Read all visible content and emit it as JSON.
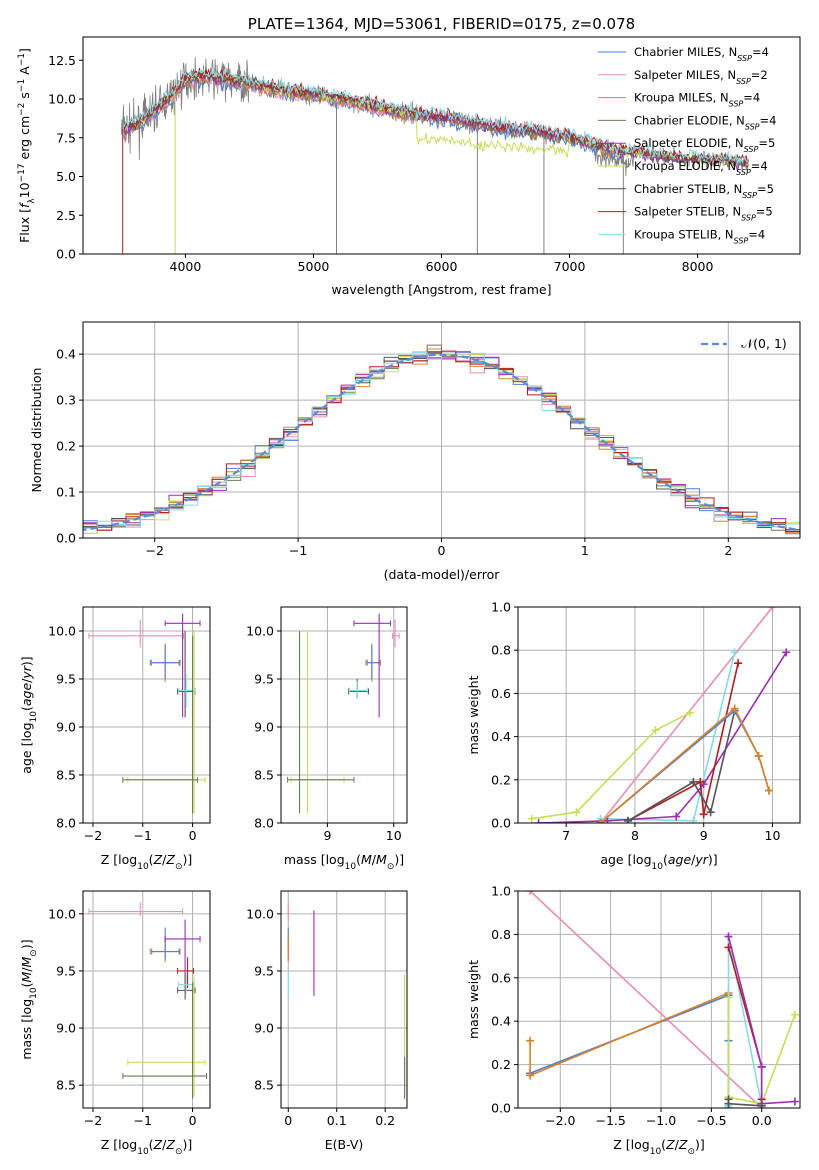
{
  "colors": {
    "Chabrier MILES": "#4f7fd6",
    "Salpeter MILES": "#e98db8",
    "Kroupa MILES": "#d9822b",
    "Chabrier ELODIE": "#6b7b5a",
    "Salpeter ELODIE": "#9a2fb0",
    "Kroupa ELODIE": "#c4e05a",
    "Chabrier STELIB": "#555555",
    "Salpeter STELIB": "#b71c1c",
    "Kroupa STELIB": "#86dbe6",
    "data": "#808080",
    "normal": "#5b8bd8"
  },
  "chart_data": [
    {
      "id": "spectrum",
      "type": "line",
      "title": "PLATE=1364, MJD=53061, FIBERID=0175, z=0.078",
      "xlabel": "wavelength [Angstrom, rest frame]",
      "ylabel": "Flux [f_λ10⁻¹⁷ erg cm⁻² s⁻¹ A⁻¹]",
      "xlim": [
        3200,
        8800
      ],
      "ylim": [
        0,
        14
      ],
      "xticks": [
        4000,
        5000,
        6000,
        7000,
        8000
      ],
      "yticks": [
        0.0,
        2.5,
        5.0,
        7.5,
        10.0,
        12.5
      ],
      "legend": "top-right",
      "legend_entries": [
        {
          "key": "Chabrier MILES",
          "label": "Chabrier MILES, N_SSP=4"
        },
        {
          "key": "Salpeter MILES",
          "label": "Salpeter MILES, N_SSP=2"
        },
        {
          "key": "Kroupa MILES",
          "label": "Kroupa MILES, N_SSP=4"
        },
        {
          "key": "Chabrier ELODIE",
          "label": "Chabrier ELODIE, N_SSP=4"
        },
        {
          "key": "Salpeter ELODIE",
          "label": "Salpeter ELODIE, N_SSP=5"
        },
        {
          "key": "Kroupa ELODIE",
          "label": "Kroupa ELODIE, N_SSP=4"
        },
        {
          "key": "Chabrier STELIB",
          "label": "Chabrier STELIB, N_SSP=5"
        },
        {
          "key": "Salpeter STELIB",
          "label": "Salpeter STELIB, N_SSP=5"
        },
        {
          "key": "Kroupa STELIB",
          "label": "Kroupa STELIB, N_SSP=4"
        }
      ],
      "continuum": {
        "x": [
          3500,
          3600,
          3700,
          3800,
          3900,
          4000,
          4100,
          4200,
          4300,
          4400,
          4500,
          4600,
          4700,
          4800,
          4900,
          5000,
          5200,
          5400,
          5600,
          5800,
          6000,
          6200,
          6400,
          6600,
          6800,
          7000,
          7200,
          7400,
          7600,
          7800,
          8000,
          8200,
          8400
        ],
        "y": [
          8.0,
          8.3,
          8.8,
          9.6,
          10.2,
          11.3,
          11.4,
          11.4,
          11.3,
          11.1,
          11.0,
          10.8,
          10.6,
          10.5,
          10.4,
          10.3,
          10.0,
          9.7,
          9.3,
          9.0,
          8.8,
          8.5,
          8.2,
          8.0,
          7.8,
          7.5,
          7.0,
          6.6,
          6.4,
          6.2,
          6.1,
          6.0,
          5.8
        ]
      }
    },
    {
      "id": "residuals",
      "type": "histogram",
      "xlabel": "(data-model)/error",
      "ylabel": "Normed distribution",
      "xlim": [
        -2.5,
        2.5
      ],
      "ylim": [
        0,
        0.47
      ],
      "xticks": [
        -2,
        -1,
        0,
        1,
        2
      ],
      "yticks": [
        0.0,
        0.1,
        0.2,
        0.3,
        0.4
      ],
      "legend": "top-right",
      "legend_label": "𝒩(0, 1)",
      "bin_width": 0.1
    },
    {
      "id": "age-vs-Z",
      "type": "scatter",
      "xlabel": "Z [log10(Z/Z⊙)]",
      "ylabel": "age  [log10(age/yr)]",
      "xlim": [
        -2.2,
        0.35
      ],
      "ylim": [
        8.0,
        10.25
      ],
      "xticks": [
        -2,
        -1,
        0
      ],
      "yticks": [
        8.0,
        8.5,
        9.0,
        9.5,
        10.0
      ],
      "points": [
        {
          "key": "Salpeter MILES",
          "x": -1.05,
          "y": 9.95,
          "x0": -2.08,
          "x1": -0.18,
          "y0": 9.83,
          "y1": 10.12
        },
        {
          "key": "Kroupa MILES",
          "x": -0.55,
          "y": 9.67,
          "x0": -0.85,
          "x1": -0.25,
          "y0": 9.47,
          "y1": 9.87
        },
        {
          "key": "Chabrier MILES",
          "x": -0.55,
          "y": 9.67,
          "x0": -0.83,
          "x1": -0.27,
          "y0": 9.5,
          "y1": 9.85
        },
        {
          "key": "Salpeter ELODIE",
          "x": -0.2,
          "y": 10.08,
          "x0": -0.55,
          "x1": 0.15,
          "y0": 9.1,
          "y1": 10.18
        },
        {
          "key": "Chabrier STELIB",
          "x": -0.15,
          "y": 9.37,
          "x0": -0.3,
          "x1": 0.05,
          "y0": 9.1,
          "y1": 10.0
        },
        {
          "key": "Kroupa STELIB",
          "x": -0.13,
          "y": 9.38,
          "x0": -0.28,
          "x1": 0.05,
          "y0": 9.2,
          "y1": 9.55
        },
        {
          "key": "Kroupa ELODIE",
          "x": 0.03,
          "y": 8.45,
          "x0": -1.3,
          "x1": 0.25,
          "y0": 8.1,
          "y1": 10.0
        },
        {
          "key": "Chabrier ELODIE",
          "x": 0.0,
          "y": 8.45,
          "x0": -1.4,
          "x1": 0.1,
          "y0": 8.1,
          "y1": 9.95
        }
      ]
    },
    {
      "id": "age-vs-mass",
      "type": "scatter",
      "xlabel": "mass [log10(M/M⊙)]",
      "ylabel": "",
      "xlim": [
        8.3,
        10.2
      ],
      "ylim": [
        8.0,
        10.25
      ],
      "xticks": [
        9,
        10
      ],
      "yticks": [
        8.0,
        8.5,
        9.0,
        9.5,
        10.0
      ],
      "points": [
        {
          "key": "Salpeter MILES",
          "x": 10.02,
          "y": 9.95,
          "x0": 9.98,
          "x1": 10.08,
          "y0": 9.83,
          "y1": 10.12
        },
        {
          "key": "Kroupa MILES",
          "x": 9.67,
          "y": 9.67,
          "x0": 9.58,
          "x1": 9.8,
          "y0": 9.47,
          "y1": 9.87
        },
        {
          "key": "Chabrier MILES",
          "x": 9.67,
          "y": 9.67,
          "x0": 9.6,
          "x1": 9.78,
          "y0": 9.5,
          "y1": 9.85
        },
        {
          "key": "Salpeter ELODIE",
          "x": 9.78,
          "y": 10.08,
          "x0": 9.4,
          "x1": 9.95,
          "y0": 9.1,
          "y1": 10.18
        },
        {
          "key": "Chabrier STELIB",
          "x": 9.45,
          "y": 9.37,
          "x0": 9.32,
          "x1": 9.62,
          "y0": 9.3,
          "y1": 9.5
        },
        {
          "key": "Kroupa STELIB",
          "x": 9.45,
          "y": 9.38,
          "x0": 9.33,
          "x1": 9.6,
          "y0": 9.3,
          "y1": 9.48
        },
        {
          "key": "Kroupa ELODIE",
          "x": 8.7,
          "y": 8.45,
          "x0": 8.45,
          "x1": 9.25,
          "y0": 8.1,
          "y1": 10.0
        },
        {
          "key": "Chabrier ELODIE",
          "x": 8.58,
          "y": 8.45,
          "x0": 8.4,
          "x1": 9.4,
          "y0": 8.1,
          "y1": 10.0
        }
      ]
    },
    {
      "id": "massweight-vs-age",
      "type": "line",
      "xlabel": "age  [log10(age/yr)]",
      "ylabel": "mass weight",
      "xlim": [
        6.3,
        10.4
      ],
      "ylim": [
        0,
        1.0
      ],
      "xticks": [
        7,
        8,
        9,
        10
      ],
      "yticks": [
        0.0,
        0.2,
        0.4,
        0.6,
        0.8,
        1.0
      ],
      "series": [
        {
          "key": "Salpeter MILES",
          "x": [
            7.5,
            10.0
          ],
          "y": [
            0.0,
            1.0
          ]
        },
        {
          "key": "Kroupa ELODIE",
          "x": [
            6.5,
            7.15,
            8.3,
            8.8
          ],
          "y": [
            0.02,
            0.05,
            0.43,
            0.51
          ]
        },
        {
          "key": "Kroupa STELIB",
          "x": [
            7.5,
            8.85,
            9.45
          ],
          "y": [
            0.02,
            0.01,
            0.79
          ]
        },
        {
          "key": "Salpeter ELODIE",
          "x": [
            6.6,
            7.6,
            8.6,
            9.0,
            10.2
          ],
          "y": [
            0.0,
            0.01,
            0.03,
            0.18,
            0.79
          ]
        },
        {
          "key": "Salpeter STELIB",
          "x": [
            7.9,
            8.95,
            9.0,
            9.5
          ],
          "y": [
            0.01,
            0.19,
            0.04,
            0.74
          ]
        },
        {
          "key": "Chabrier STELIB",
          "x": [
            7.9,
            8.85,
            9.1,
            9.45
          ],
          "y": [
            0.01,
            0.19,
            0.05,
            0.52
          ]
        },
        {
          "key": "Chabrier MILES",
          "x": [
            7.5,
            9.45,
            9.8,
            9.95
          ],
          "y": [
            0.0,
            0.52,
            0.31,
            0.15
          ]
        },
        {
          "key": "Kroupa MILES",
          "x": [
            7.5,
            9.45,
            9.8,
            9.95
          ],
          "y": [
            0.0,
            0.53,
            0.31,
            0.15
          ]
        }
      ]
    },
    {
      "id": "mass-vs-Z",
      "type": "scatter",
      "xlabel": "Z [log10(Z/Z⊙)]",
      "ylabel": "mass [log10(M/M⊙)]",
      "xlim": [
        -2.2,
        0.35
      ],
      "ylim": [
        8.3,
        10.2
      ],
      "xticks": [
        -2,
        -1,
        0
      ],
      "yticks": [
        8.5,
        9.0,
        9.5,
        10.0
      ],
      "points": [
        {
          "key": "Salpeter MILES",
          "x": -1.05,
          "y": 10.02,
          "x0": -2.08,
          "x1": -0.2,
          "y0": 9.98,
          "y1": 10.1
        },
        {
          "key": "Kroupa MILES",
          "x": -0.55,
          "y": 9.67,
          "x0": -0.85,
          "x1": -0.25,
          "y0": 9.58,
          "y1": 9.8
        },
        {
          "key": "Chabrier MILES",
          "x": -0.55,
          "y": 9.67,
          "x0": -0.82,
          "x1": -0.27,
          "y0": 9.6,
          "y1": 9.88
        },
        {
          "key": "Salpeter ELODIE",
          "x": -0.15,
          "y": 9.78,
          "x0": -0.55,
          "x1": 0.15,
          "y0": 9.4,
          "y1": 9.95
        },
        {
          "key": "Salpeter STELIB",
          "x": -0.1,
          "y": 9.5,
          "x0": -0.3,
          "x1": 0.02,
          "y0": 9.35,
          "y1": 9.62
        },
        {
          "key": "Chabrier STELIB",
          "x": -0.15,
          "y": 9.33,
          "x0": -0.3,
          "x1": 0.05,
          "y0": 9.25,
          "y1": 9.48
        },
        {
          "key": "Kroupa STELIB",
          "x": -0.13,
          "y": 9.38,
          "x0": -0.28,
          "x1": 0.02,
          "y0": 9.3,
          "y1": 9.5
        },
        {
          "key": "Kroupa ELODIE",
          "x": 0.03,
          "y": 8.7,
          "x0": -1.3,
          "x1": 0.25,
          "y0": 8.4,
          "y1": 9.45
        },
        {
          "key": "Chabrier ELODIE",
          "x": 0.0,
          "y": 8.58,
          "x0": -1.4,
          "x1": 0.28,
          "y0": 8.38,
          "y1": 9.4
        }
      ]
    },
    {
      "id": "mass-vs-EBV",
      "type": "scatter",
      "xlabel": "E(B-V)",
      "ylabel": "",
      "xlim": [
        -0.015,
        0.245
      ],
      "ylim": [
        8.3,
        10.2
      ],
      "xticks": [
        0.0,
        0.1,
        0.2
      ],
      "yticks": [
        8.5,
        9.0,
        9.5,
        10.0
      ],
      "points": [
        {
          "key": "Salpeter MILES",
          "x": 0.0,
          "y": 10.0,
          "y0": 9.95,
          "y1": 10.1
        },
        {
          "key": "Chabrier MILES",
          "x": 0.0,
          "y": 9.67,
          "y0": 9.6,
          "y1": 9.88
        },
        {
          "key": "Kroupa MILES",
          "x": 0.0,
          "y": 9.67,
          "y0": 9.58,
          "y1": 9.82
        },
        {
          "key": "Kroupa STELIB",
          "x": 0.0,
          "y": 9.38,
          "y0": 9.25,
          "y1": 9.5
        },
        {
          "key": "Salpeter ELODIE",
          "x": 0.053,
          "y": 9.78,
          "y0": 9.28,
          "y1": 10.03
        },
        {
          "key": "Kroupa ELODIE",
          "x": 0.24,
          "y": 8.7,
          "y0": 8.4,
          "y1": 9.47
        },
        {
          "key": "Chabrier ELODIE",
          "x": 0.24,
          "y": 8.58,
          "y0": 8.38,
          "y1": 8.75
        }
      ]
    },
    {
      "id": "massweight-vs-Z",
      "type": "line",
      "xlabel": "Z [log10(Z/Z⊙)]",
      "ylabel": "mass weight",
      "xlim": [
        -2.42,
        0.38
      ],
      "ylim": [
        0,
        1.0
      ],
      "xticks": [
        -2.0,
        -1.5,
        -1.0,
        -0.5,
        0.0
      ],
      "yticks": [
        0.0,
        0.2,
        0.4,
        0.6,
        0.8,
        1.0
      ],
      "series": [
        {
          "key": "Salpeter MILES",
          "x": [
            -2.3,
            0.0
          ],
          "y": [
            1.0,
            0.0
          ]
        },
        {
          "key": "Chabrier MILES",
          "x": [
            -2.3,
            -0.33,
            -0.33,
            -0.33
          ],
          "y": [
            0.16,
            0.52,
            0.31,
            0.0
          ]
        },
        {
          "key": "Kroupa MILES",
          "x": [
            -2.3,
            -2.3,
            -0.33
          ],
          "y": [
            0.31,
            0.15,
            0.53
          ]
        },
        {
          "key": "Kroupa STELIB",
          "x": [
            -0.33,
            -0.33,
            0.0
          ],
          "y": [
            0.01,
            0.79,
            0.01
          ]
        },
        {
          "key": "Kroupa ELODIE",
          "x": [
            -0.33,
            -0.33,
            0.0,
            0.33
          ],
          "y": [
            0.51,
            0.05,
            0.02,
            0.43
          ]
        },
        {
          "key": "Salpeter STELIB",
          "x": [
            -0.33,
            0.0,
            0.0
          ],
          "y": [
            0.74,
            0.19,
            0.04
          ]
        },
        {
          "key": "Salpeter ELODIE",
          "x": [
            -0.33,
            0.0,
            0.0,
            0.33
          ],
          "y": [
            0.79,
            0.19,
            0.02,
            0.03
          ]
        },
        {
          "key": "Chabrier STELIB",
          "x": [
            -0.33,
            -0.33,
            0.0
          ],
          "y": [
            0.04,
            0.02,
            0.01
          ]
        }
      ]
    }
  ]
}
